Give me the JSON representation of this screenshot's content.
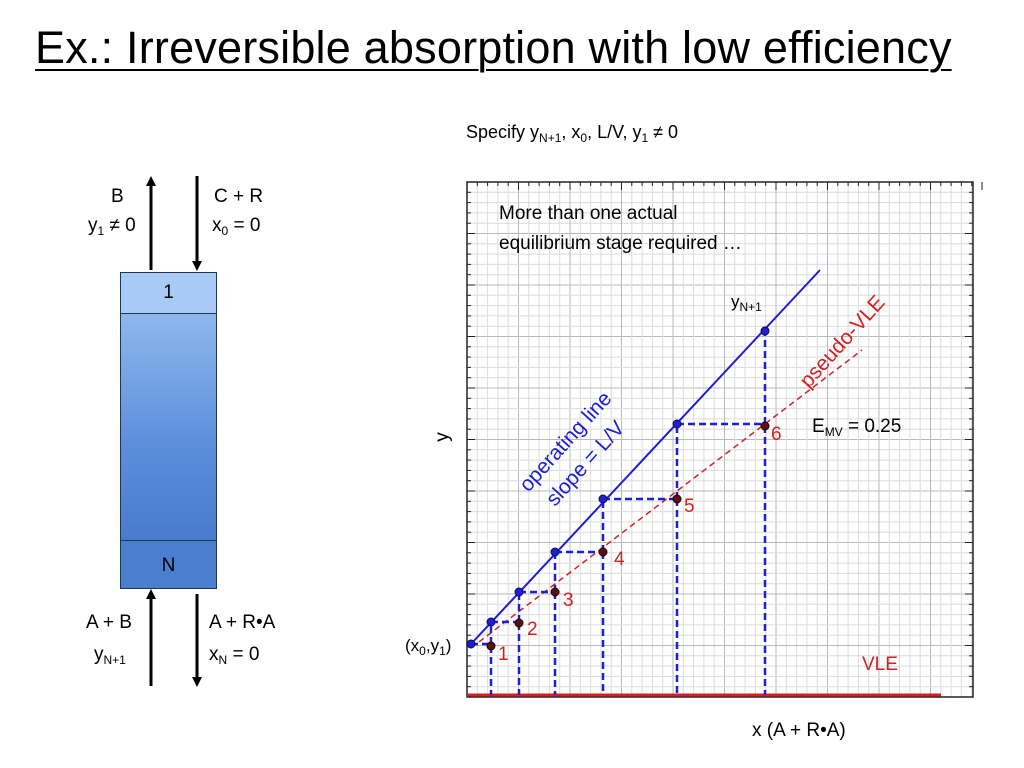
{
  "title": "Ex.: Irreversible absorption with low efficiency",
  "specify": {
    "text": "Specify y",
    "sub1": "N+1",
    "mid1": ", x",
    "sub2": "0",
    "mid2": ", L/V, y",
    "sub3": "1",
    "end": " ≠ 0"
  },
  "column": {
    "top_stage": "1",
    "bottom_stage": "N",
    "top_out": {
      "name": "B",
      "cond_var": "y",
      "cond_sub": "1",
      "cond_rest": " ≠ 0"
    },
    "top_in": {
      "name": "C + R",
      "cond_var": "x",
      "cond_sub": "0",
      "cond_rest": " = 0"
    },
    "bottom_in": {
      "name": "A + B",
      "cond_var": "y",
      "cond_sub": "N+1"
    },
    "bottom_out": {
      "name": "A + R•A",
      "cond_var": "x",
      "cond_sub": "N",
      "cond_rest": "  = 0"
    }
  },
  "plot": {
    "note_line1": "More than one actual",
    "note_line2": "equilibrium stage required …",
    "ylabel": "y",
    "xlabel": "x  (A + R•A)",
    "operating_line": {
      "label1": "operating line",
      "label2": "slope = L/V",
      "color": "#1f1fd1"
    },
    "pseudo_vle_label": "pseudo-VLE",
    "vle_label": "VLE",
    "red_color": "#d42020",
    "emv": {
      "var": "E",
      "sub": "MV",
      "rest": " = 0.25"
    },
    "start_point": {
      "a": "(x",
      "sub1": "0",
      "b": ",y",
      "sub2": "1",
      "c": ")"
    },
    "end_point": {
      "var": "y",
      "sub": "N+1"
    },
    "stage_numbers": [
      "1",
      "2",
      "3",
      "4",
      "5",
      "6"
    ]
  }
}
